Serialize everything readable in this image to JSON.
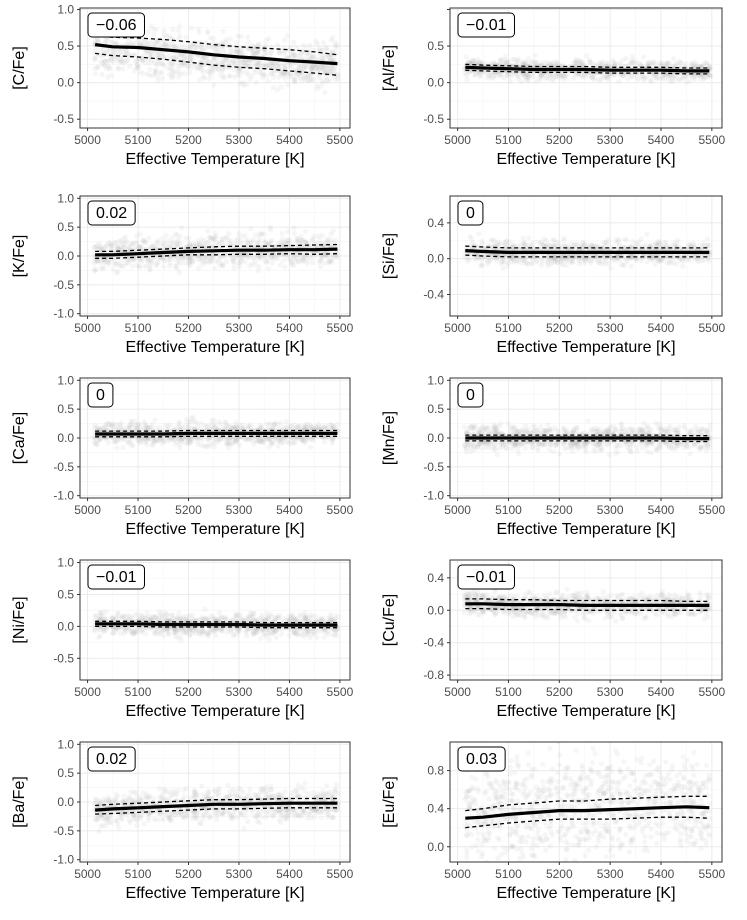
{
  "chart_data": [
    {
      "type": "line",
      "ylabel": "[C/Fe]",
      "xlabel": "Effective Temperature [K]",
      "badge": "−0.06",
      "xlim": [
        4985,
        5520
      ],
      "ylim": [
        -0.62,
        1.02
      ],
      "yticks": [
        -0.5,
        0.0,
        0.5,
        1.0
      ],
      "ytick_labels": [
        "-0.5",
        "0.0",
        "0.5",
        "1.0"
      ],
      "xticks": [
        5000,
        5100,
        5200,
        5300,
        5400,
        5500
      ],
      "xtick_labels": [
        "5000",
        "5100",
        "5200",
        "5300",
        "5400",
        "5500"
      ],
      "x": [
        5015,
        5050,
        5100,
        5150,
        5200,
        5250,
        5300,
        5350,
        5400,
        5450,
        5495
      ],
      "median": [
        0.52,
        0.49,
        0.48,
        0.45,
        0.42,
        0.38,
        0.35,
        0.33,
        0.3,
        0.28,
        0.26
      ],
      "upper": [
        0.64,
        0.62,
        0.61,
        0.59,
        0.56,
        0.52,
        0.49,
        0.47,
        0.45,
        0.42,
        0.38
      ],
      "lower": [
        0.4,
        0.37,
        0.35,
        0.32,
        0.28,
        0.24,
        0.21,
        0.19,
        0.16,
        0.13,
        0.1
      ],
      "scatter_center": [
        0.45,
        0.42,
        0.4,
        0.38,
        0.36,
        0.33,
        0.31,
        0.3,
        0.28,
        0.27,
        0.26
      ],
      "scatter_spread": 0.28
    },
    {
      "type": "line",
      "ylabel": "[Al/Fe]",
      "xlabel": "Effective Temperature [K]",
      "badge": "−0.01",
      "xlim": [
        4985,
        5520
      ],
      "ylim": [
        -0.62,
        1.02
      ],
      "yticks": [
        -0.5,
        0.0,
        0.5,
        1.0
      ],
      "ytick_labels": [
        "-0.5",
        "0.0",
        "0.5",
        ""
      ],
      "xticks": [
        5000,
        5100,
        5200,
        5300,
        5400,
        5500
      ],
      "xtick_labels": [
        "5000",
        "5100",
        "5200",
        "5300",
        "5400",
        "5500"
      ],
      "x": [
        5015,
        5050,
        5100,
        5150,
        5200,
        5250,
        5300,
        5350,
        5400,
        5450,
        5495
      ],
      "median": [
        0.21,
        0.2,
        0.19,
        0.18,
        0.18,
        0.18,
        0.17,
        0.17,
        0.17,
        0.16,
        0.16
      ],
      "upper": [
        0.25,
        0.24,
        0.23,
        0.22,
        0.22,
        0.22,
        0.21,
        0.21,
        0.21,
        0.2,
        0.2
      ],
      "lower": [
        0.17,
        0.16,
        0.15,
        0.14,
        0.14,
        0.14,
        0.13,
        0.13,
        0.13,
        0.12,
        0.12
      ],
      "scatter_center": [
        0.2,
        0.19,
        0.19,
        0.18,
        0.18,
        0.18,
        0.17,
        0.17,
        0.17,
        0.16,
        0.16
      ],
      "scatter_spread": 0.12
    },
    {
      "type": "line",
      "ylabel": "[K/Fe]",
      "xlabel": "Effective Temperature [K]",
      "badge": "0.02",
      "xlim": [
        4985,
        5520
      ],
      "ylim": [
        -1.04,
        1.04
      ],
      "yticks": [
        -1.0,
        -0.5,
        0.0,
        0.5,
        1.0
      ],
      "ytick_labels": [
        "-1.0",
        "-0.5",
        "0.0",
        "0.5",
        "1.0"
      ],
      "xticks": [
        5000,
        5100,
        5200,
        5300,
        5400,
        5500
      ],
      "xtick_labels": [
        "5000",
        "5100",
        "5200",
        "5300",
        "5400",
        "5500"
      ],
      "x": [
        5015,
        5050,
        5100,
        5150,
        5200,
        5250,
        5300,
        5350,
        5400,
        5450,
        5495
      ],
      "median": [
        0.02,
        0.02,
        0.04,
        0.06,
        0.08,
        0.09,
        0.1,
        0.1,
        0.11,
        0.11,
        0.12
      ],
      "upper": [
        0.08,
        0.08,
        0.1,
        0.12,
        0.14,
        0.16,
        0.17,
        0.17,
        0.18,
        0.19,
        0.2
      ],
      "lower": [
        -0.04,
        -0.04,
        -0.02,
        0.0,
        0.02,
        0.02,
        0.03,
        0.03,
        0.04,
        0.03,
        0.04
      ],
      "scatter_center": [
        0.02,
        0.02,
        0.04,
        0.06,
        0.08,
        0.09,
        0.1,
        0.1,
        0.11,
        0.11,
        0.12
      ],
      "scatter_spread": 0.25
    },
    {
      "type": "line",
      "ylabel": "[Si/Fe]",
      "xlabel": "Effective Temperature [K]",
      "badge": "0",
      "xlim": [
        4985,
        5520
      ],
      "ylim": [
        -0.64,
        0.7
      ],
      "yticks": [
        -0.4,
        0.0,
        0.4
      ],
      "ytick_labels": [
        "-0.4",
        "0.0",
        "0.4"
      ],
      "xticks": [
        5000,
        5100,
        5200,
        5300,
        5400,
        5500
      ],
      "xtick_labels": [
        "5000",
        "5100",
        "5200",
        "5300",
        "5400",
        "5500"
      ],
      "x": [
        5015,
        5050,
        5100,
        5150,
        5200,
        5250,
        5300,
        5350,
        5400,
        5450,
        5495
      ],
      "median": [
        0.09,
        0.08,
        0.07,
        0.07,
        0.07,
        0.07,
        0.07,
        0.07,
        0.07,
        0.07,
        0.07
      ],
      "upper": [
        0.14,
        0.13,
        0.12,
        0.12,
        0.12,
        0.12,
        0.12,
        0.12,
        0.12,
        0.12,
        0.12
      ],
      "lower": [
        0.04,
        0.03,
        0.02,
        0.02,
        0.02,
        0.02,
        0.02,
        0.02,
        0.02,
        0.02,
        0.02
      ],
      "scatter_center": [
        0.09,
        0.08,
        0.07,
        0.07,
        0.07,
        0.07,
        0.07,
        0.07,
        0.07,
        0.07,
        0.07
      ],
      "scatter_spread": 0.12
    },
    {
      "type": "line",
      "ylabel": "[Ca/Fe]",
      "xlabel": "Effective Temperature [K]",
      "badge": "0",
      "xlim": [
        4985,
        5520
      ],
      "ylim": [
        -1.04,
        1.04
      ],
      "yticks": [
        -1.0,
        -0.5,
        0.0,
        0.5,
        1.0
      ],
      "ytick_labels": [
        "-1.0",
        "-0.5",
        "0.0",
        "0.5",
        "1.0"
      ],
      "xticks": [
        5000,
        5100,
        5200,
        5300,
        5400,
        5500
      ],
      "xtick_labels": [
        "5000",
        "5100",
        "5200",
        "5300",
        "5400",
        "5500"
      ],
      "x": [
        5015,
        5050,
        5100,
        5150,
        5200,
        5250,
        5300,
        5350,
        5400,
        5450,
        5495
      ],
      "median": [
        0.07,
        0.07,
        0.07,
        0.07,
        0.08,
        0.08,
        0.08,
        0.08,
        0.08,
        0.08,
        0.08
      ],
      "upper": [
        0.12,
        0.12,
        0.12,
        0.12,
        0.13,
        0.13,
        0.13,
        0.13,
        0.13,
        0.13,
        0.13
      ],
      "lower": [
        0.02,
        0.02,
        0.02,
        0.02,
        0.03,
        0.03,
        0.03,
        0.03,
        0.03,
        0.03,
        0.03
      ],
      "scatter_center": [
        0.07,
        0.07,
        0.07,
        0.07,
        0.08,
        0.08,
        0.08,
        0.08,
        0.08,
        0.08,
        0.08
      ],
      "scatter_spread": 0.18
    },
    {
      "type": "line",
      "ylabel": "[Mn/Fe]",
      "xlabel": "Effective Temperature [K]",
      "badge": "0",
      "xlim": [
        4985,
        5520
      ],
      "ylim": [
        -1.04,
        1.04
      ],
      "yticks": [
        -1.0,
        -0.5,
        0.0,
        0.5,
        1.0
      ],
      "ytick_labels": [
        "-1.0",
        "-0.5",
        "0.0",
        "0.5",
        "1.0"
      ],
      "xticks": [
        5000,
        5100,
        5200,
        5300,
        5400,
        5500
      ],
      "xtick_labels": [
        "5000",
        "5100",
        "5200",
        "5300",
        "5400",
        "5500"
      ],
      "x": [
        5015,
        5050,
        5100,
        5150,
        5200,
        5250,
        5300,
        5350,
        5400,
        5450,
        5495
      ],
      "median": [
        0.0,
        0.0,
        0.0,
        0.0,
        0.0,
        0.0,
        0.0,
        0.0,
        0.0,
        -0.01,
        -0.01
      ],
      "upper": [
        0.05,
        0.05,
        0.05,
        0.05,
        0.05,
        0.05,
        0.05,
        0.05,
        0.05,
        0.04,
        0.04
      ],
      "lower": [
        -0.05,
        -0.05,
        -0.05,
        -0.05,
        -0.05,
        -0.05,
        -0.05,
        -0.05,
        -0.05,
        -0.06,
        -0.06
      ],
      "scatter_center": [
        0.0,
        0.0,
        0.0,
        0.0,
        0.0,
        0.0,
        0.0,
        0.0,
        0.0,
        -0.01,
        -0.01
      ],
      "scatter_spread": 0.2
    },
    {
      "type": "line",
      "ylabel": "[Ni/Fe]",
      "xlabel": "Effective Temperature [K]",
      "badge": "−0.01",
      "xlim": [
        4985,
        5520
      ],
      "ylim": [
        -0.84,
        1.04
      ],
      "yticks": [
        -0.5,
        0.0,
        0.5,
        1.0
      ],
      "ytick_labels": [
        "-0.5",
        "0.0",
        "0.5",
        "1.0"
      ],
      "xticks": [
        5000,
        5100,
        5200,
        5300,
        5400,
        5500
      ],
      "xtick_labels": [
        "5000",
        "5100",
        "5200",
        "5300",
        "5400",
        "5500"
      ],
      "x": [
        5015,
        5050,
        5100,
        5150,
        5200,
        5250,
        5300,
        5350,
        5400,
        5450,
        5495
      ],
      "median": [
        0.04,
        0.04,
        0.04,
        0.03,
        0.03,
        0.03,
        0.03,
        0.02,
        0.02,
        0.02,
        0.02
      ],
      "upper": [
        0.08,
        0.08,
        0.08,
        0.07,
        0.07,
        0.07,
        0.07,
        0.06,
        0.06,
        0.06,
        0.06
      ],
      "lower": [
        0.0,
        0.0,
        0.0,
        -0.01,
        -0.01,
        -0.01,
        -0.01,
        -0.02,
        -0.02,
        -0.02,
        -0.02
      ],
      "scatter_center": [
        0.04,
        0.04,
        0.04,
        0.03,
        0.03,
        0.03,
        0.03,
        0.02,
        0.02,
        0.02,
        0.02
      ],
      "scatter_spread": 0.16
    },
    {
      "type": "line",
      "ylabel": "[Cu/Fe]",
      "xlabel": "Effective Temperature [K]",
      "badge": "−0.01",
      "xlim": [
        4985,
        5520
      ],
      "ylim": [
        -0.86,
        0.62
      ],
      "yticks": [
        -0.8,
        -0.4,
        0.0,
        0.4
      ],
      "ytick_labels": [
        "-0.8",
        "-0.4",
        "0.0",
        "0.4"
      ],
      "xticks": [
        5000,
        5100,
        5200,
        5300,
        5400,
        5500
      ],
      "xtick_labels": [
        "5000",
        "5100",
        "5200",
        "5300",
        "5400",
        "5500"
      ],
      "x": [
        5015,
        5050,
        5100,
        5150,
        5200,
        5250,
        5300,
        5350,
        5400,
        5450,
        5495
      ],
      "median": [
        0.08,
        0.08,
        0.07,
        0.07,
        0.07,
        0.06,
        0.06,
        0.06,
        0.06,
        0.06,
        0.06
      ],
      "upper": [
        0.14,
        0.14,
        0.13,
        0.13,
        0.12,
        0.12,
        0.12,
        0.12,
        0.12,
        0.11,
        0.11
      ],
      "lower": [
        0.02,
        0.02,
        0.01,
        0.01,
        0.01,
        0.0,
        0.0,
        0.0,
        0.0,
        0.0,
        0.0
      ],
      "scatter_center": [
        0.08,
        0.08,
        0.07,
        0.07,
        0.07,
        0.06,
        0.06,
        0.06,
        0.06,
        0.06,
        0.06
      ],
      "scatter_spread": 0.13
    },
    {
      "type": "line",
      "ylabel": "[Ba/Fe]",
      "xlabel": "Effective Temperature [K]",
      "badge": "0.02",
      "xlim": [
        4985,
        5520
      ],
      "ylim": [
        -1.04,
        1.04
      ],
      "yticks": [
        -1.0,
        -0.5,
        0.0,
        0.5,
        1.0
      ],
      "ytick_labels": [
        "-1.0",
        "-0.5",
        "0.0",
        "0.5",
        "1.0"
      ],
      "xticks": [
        5000,
        5100,
        5200,
        5300,
        5400,
        5500
      ],
      "xtick_labels": [
        "5000",
        "5100",
        "5200",
        "5300",
        "5400",
        "5500"
      ],
      "x": [
        5015,
        5050,
        5100,
        5150,
        5200,
        5250,
        5300,
        5350,
        5400,
        5450,
        5495
      ],
      "median": [
        -0.14,
        -0.12,
        -0.1,
        -0.08,
        -0.06,
        -0.04,
        -0.04,
        -0.03,
        -0.02,
        -0.02,
        -0.02
      ],
      "upper": [
        -0.06,
        -0.04,
        -0.02,
        0.0,
        0.02,
        0.04,
        0.04,
        0.05,
        0.06,
        0.06,
        0.06
      ],
      "lower": [
        -0.21,
        -0.2,
        -0.18,
        -0.16,
        -0.14,
        -0.12,
        -0.12,
        -0.11,
        -0.1,
        -0.1,
        -0.1
      ],
      "scatter_center": [
        -0.14,
        -0.12,
        -0.1,
        -0.08,
        -0.06,
        -0.04,
        -0.04,
        -0.03,
        -0.02,
        -0.02,
        -0.02
      ],
      "scatter_spread": 0.25
    },
    {
      "type": "line",
      "ylabel": "[Eu/Fe]",
      "xlabel": "Effective Temperature [K]",
      "badge": "0.03",
      "xlim": [
        4985,
        5520
      ],
      "ylim": [
        -0.16,
        1.1
      ],
      "yticks": [
        0.0,
        0.4,
        0.8
      ],
      "ytick_labels": [
        "0.0",
        "0.4",
        "0.8"
      ],
      "xticks": [
        5000,
        5100,
        5200,
        5300,
        5400,
        5500
      ],
      "xtick_labels": [
        "5000",
        "5100",
        "5200",
        "5300",
        "5400",
        "5500"
      ],
      "x": [
        5015,
        5050,
        5100,
        5150,
        5200,
        5250,
        5300,
        5350,
        5400,
        5450,
        5495
      ],
      "median": [
        0.3,
        0.31,
        0.34,
        0.36,
        0.38,
        0.38,
        0.39,
        0.4,
        0.41,
        0.42,
        0.41
      ],
      "upper": [
        0.38,
        0.4,
        0.44,
        0.46,
        0.48,
        0.48,
        0.5,
        0.51,
        0.52,
        0.53,
        0.53
      ],
      "lower": [
        0.2,
        0.22,
        0.25,
        0.27,
        0.29,
        0.29,
        0.29,
        0.3,
        0.31,
        0.31,
        0.3
      ],
      "scatter_center": [
        0.35,
        0.36,
        0.38,
        0.4,
        0.42,
        0.42,
        0.43,
        0.44,
        0.45,
        0.46,
        0.46
      ],
      "scatter_spread": 0.45
    }
  ],
  "colors": {
    "panel_background": "#ffffff",
    "grid_major": "#ebebeb",
    "grid_minor": "#f5f5f5",
    "border": "#333333",
    "scatter": "#bdbdbd",
    "median_line": "#000000",
    "band_line": "#000000"
  },
  "grid": true
}
